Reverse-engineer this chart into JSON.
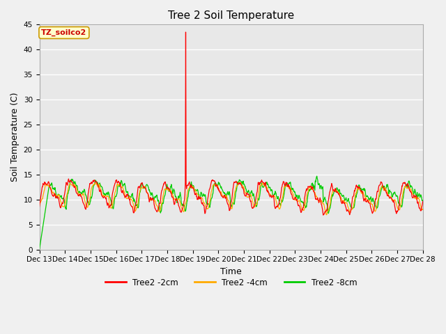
{
  "title": "Tree 2 Soil Temperature",
  "ylabel": "Soil Temperature (C)",
  "xlabel": "Time",
  "annotation_label": "TZ_soilco2",
  "ylim": [
    0,
    45
  ],
  "yticks": [
    0,
    5,
    10,
    15,
    20,
    25,
    30,
    35,
    40,
    45
  ],
  "x_tick_labels": [
    "Dec 13",
    "Dec 14",
    "Dec 15",
    "Dec 16",
    "Dec 17",
    "Dec 18",
    "Dec 19",
    "Dec 20",
    "Dec 21",
    "Dec 22",
    "Dec 23",
    "Dec 24",
    "Dec 25",
    "Dec 26",
    "Dec 27",
    "Dec 28"
  ],
  "series_colors": [
    "#ff0000",
    "#ffaa00",
    "#00cc00"
  ],
  "series_labels": [
    "Tree2 -2cm",
    "Tree2 -4cm",
    "Tree2 -8cm"
  ],
  "fig_bg_color": "#f0f0f0",
  "plot_bg_color": "#e8e8e8",
  "title_fontsize": 11,
  "axis_label_fontsize": 9,
  "tick_fontsize": 7.5,
  "legend_fontsize": 8.5,
  "annotation_fontsize": 8,
  "num_points": 960,
  "spike_day": 6.1,
  "spike_value": 43.5,
  "total_days": 16
}
